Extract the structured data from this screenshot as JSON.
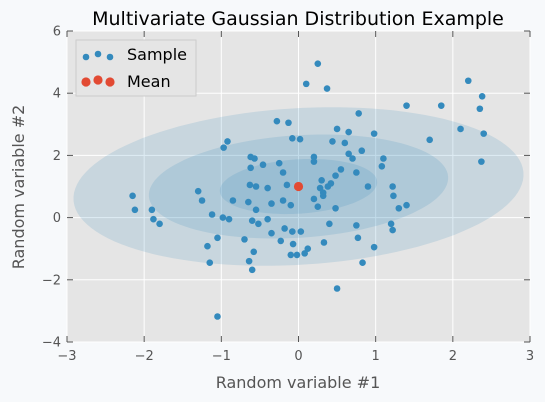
{
  "chart_data": {
    "type": "scatter",
    "title": "Multivariate Gaussian Distribution Example",
    "xlabel": "Random variable #1",
    "ylabel": "Random variable #2",
    "xlim": [
      -3,
      3
    ],
    "ylim": [
      -4,
      6
    ],
    "xticks": [
      -3,
      -2,
      -1,
      0,
      1,
      2,
      3
    ],
    "yticks": [
      -4,
      -2,
      0,
      2,
      4,
      6
    ],
    "xtick_labels": [
      "−3",
      "−2",
      "−1",
      "0",
      "1",
      "2",
      "3"
    ],
    "ytick_labels": [
      "−4",
      "−2",
      "0",
      "2",
      "4",
      "6"
    ],
    "grid": true,
    "legend_position": "top-left",
    "colors": {
      "sample": "#348abd",
      "mean": "#e24a33",
      "ellipse": "#348abd",
      "plot_background": "#e5e5e5",
      "grid": "#ffffff"
    },
    "confidence_ellipses": [
      {
        "center": [
          0,
          1
        ],
        "semi_major": 3.0,
        "semi_minor": 2.45,
        "angle_deg": 24
      },
      {
        "center": [
          0,
          1
        ],
        "semi_major": 2.0,
        "semi_minor": 1.6,
        "angle_deg": 24
      },
      {
        "center": [
          0,
          1
        ],
        "semi_major": 1.05,
        "semi_minor": 0.85,
        "angle_deg": 24
      }
    ],
    "series": [
      {
        "name": "Sample",
        "points": [
          [
            0.25,
            4.95
          ],
          [
            0.1,
            4.3
          ],
          [
            0.37,
            4.15
          ],
          [
            2.2,
            4.4
          ],
          [
            2.38,
            3.9
          ],
          [
            2.35,
            3.5
          ],
          [
            2.4,
            2.7
          ],
          [
            2.1,
            2.85
          ],
          [
            2.37,
            1.8
          ],
          [
            1.85,
            3.6
          ],
          [
            1.4,
            3.6
          ],
          [
            1.7,
            2.5
          ],
          [
            0.78,
            3.35
          ],
          [
            0.5,
            2.85
          ],
          [
            0.65,
            2.75
          ],
          [
            0.98,
            2.7
          ],
          [
            -0.28,
            3.1
          ],
          [
            -0.13,
            3.05
          ],
          [
            -0.92,
            2.45
          ],
          [
            -0.97,
            2.25
          ],
          [
            -0.08,
            2.55
          ],
          [
            0.02,
            2.52
          ],
          [
            0.44,
            2.45
          ],
          [
            0.6,
            2.4
          ],
          [
            0.82,
            2.15
          ],
          [
            0.65,
            2.05
          ],
          [
            0.7,
            1.9
          ],
          [
            1.1,
            1.9
          ],
          [
            1.08,
            1.65
          ],
          [
            -0.62,
            1.95
          ],
          [
            -0.57,
            1.9
          ],
          [
            -0.46,
            1.7
          ],
          [
            -0.25,
            1.75
          ],
          [
            0.2,
            1.95
          ],
          [
            0.2,
            1.8
          ],
          [
            0.55,
            1.55
          ],
          [
            0.75,
            1.45
          ],
          [
            0.48,
            1.35
          ],
          [
            0.3,
            1.2
          ],
          [
            -0.62,
            1.6
          ],
          [
            -0.2,
            1.45
          ],
          [
            -0.55,
            1.0
          ],
          [
            -0.63,
            1.05
          ],
          [
            -0.4,
            0.95
          ],
          [
            -0.15,
            1.05
          ],
          [
            0.28,
            0.95
          ],
          [
            0.42,
            1.1
          ],
          [
            0.38,
            1.0
          ],
          [
            0.32,
            0.8
          ],
          [
            0.9,
            1.0
          ],
          [
            1.22,
            1.0
          ],
          [
            1.23,
            0.7
          ],
          [
            -2.15,
            0.7
          ],
          [
            -2.12,
            0.25
          ],
          [
            -1.3,
            0.85
          ],
          [
            -1.25,
            0.55
          ],
          [
            -0.85,
            0.55
          ],
          [
            -0.65,
            0.5
          ],
          [
            -0.55,
            0.25
          ],
          [
            -0.35,
            0.45
          ],
          [
            -0.2,
            0.55
          ],
          [
            -0.1,
            0.4
          ],
          [
            0.2,
            0.6
          ],
          [
            0.32,
            0.7
          ],
          [
            0.25,
            0.35
          ],
          [
            0.48,
            0.3
          ],
          [
            1.3,
            0.3
          ],
          [
            1.4,
            0.4
          ],
          [
            1.2,
            -0.2
          ],
          [
            1.22,
            -0.4
          ],
          [
            -1.9,
            0.25
          ],
          [
            -1.88,
            -0.05
          ],
          [
            -1.8,
            -0.2
          ],
          [
            -1.12,
            0.1
          ],
          [
            -0.98,
            0.0
          ],
          [
            -0.9,
            -0.05
          ],
          [
            -0.6,
            -0.1
          ],
          [
            -0.4,
            -0.05
          ],
          [
            -0.52,
            -0.2
          ],
          [
            -0.35,
            -0.5
          ],
          [
            -0.18,
            -0.35
          ],
          [
            -0.08,
            -0.45
          ],
          [
            0.03,
            -0.45
          ],
          [
            0.4,
            -0.2
          ],
          [
            0.75,
            -0.25
          ],
          [
            -1.05,
            -0.65
          ],
          [
            -0.7,
            -0.7
          ],
          [
            -0.23,
            -0.75
          ],
          [
            -0.07,
            -0.85
          ],
          [
            0.12,
            -1.0
          ],
          [
            0.33,
            -0.8
          ],
          [
            0.77,
            -0.65
          ],
          [
            0.98,
            -0.95
          ],
          [
            -1.18,
            -0.92
          ],
          [
            -0.58,
            -1.1
          ],
          [
            -0.1,
            -1.2
          ],
          [
            -0.02,
            -1.2
          ],
          [
            0.08,
            -1.15
          ],
          [
            -1.15,
            -1.45
          ],
          [
            -0.64,
            -1.4
          ],
          [
            -0.6,
            -1.68
          ],
          [
            0.83,
            -1.45
          ],
          [
            0.5,
            -2.28
          ],
          [
            -1.05,
            -3.18
          ]
        ]
      },
      {
        "name": "Mean",
        "points": [
          [
            0,
            1
          ]
        ]
      }
    ]
  }
}
